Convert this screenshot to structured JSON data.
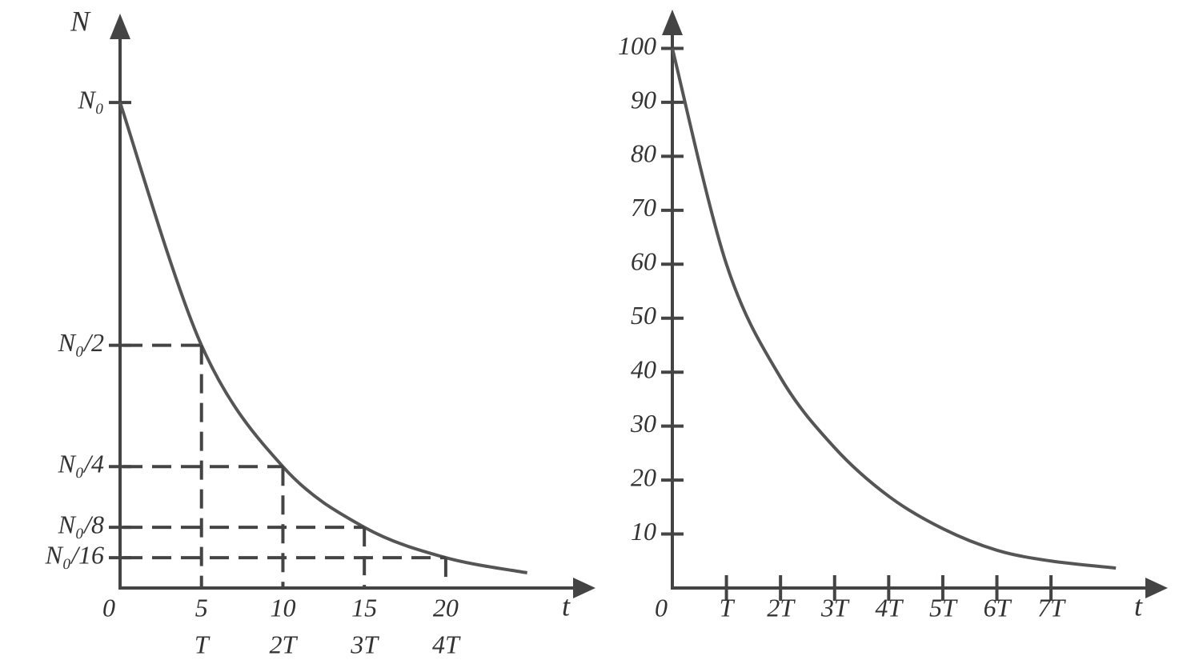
{
  "chart_data": [
    {
      "type": "line",
      "ylabel": "N",
      "xlabel": "t",
      "x": [
        0,
        5,
        10,
        15,
        20,
        25
      ],
      "series": [
        {
          "color": "#555555",
          "values": [
            1,
            0.5,
            0.25,
            0.125,
            0.0625,
            0.03125
          ]
        }
      ],
      "xlim": [
        0,
        29
      ],
      "ylim": [
        0,
        1.17
      ],
      "yticks": [
        {
          "value": 1,
          "label": "N₀"
        },
        {
          "value": 0.5,
          "label": "N₀/2"
        },
        {
          "value": 0.25,
          "label": "N₀/4"
        },
        {
          "value": 0.125,
          "label": "N₀/8"
        },
        {
          "value": 0.0625,
          "label": "N₀/16"
        }
      ],
      "xticks": [
        0,
        5,
        10,
        15,
        20
      ],
      "x2ticks": [
        {
          "value": 5,
          "label": "T"
        },
        {
          "value": 10,
          "label": "2T"
        },
        {
          "value": 15,
          "label": "3T"
        },
        {
          "value": 20,
          "label": "4T"
        }
      ],
      "guides": true,
      "xtick_marks": false
    },
    {
      "type": "line",
      "xlabel": "t",
      "x": [
        0,
        1,
        2,
        3,
        4,
        5,
        6,
        7,
        8.2
      ],
      "series": [
        {
          "color": "#555555",
          "values": [
            100,
            60,
            39,
            26,
            17,
            11,
            7,
            5,
            3.7
          ]
        }
      ],
      "xlim": [
        0,
        9.1
      ],
      "ylim": [
        0,
        106
      ],
      "yticks": [
        10,
        20,
        30,
        40,
        50,
        60,
        70,
        80,
        90,
        100
      ],
      "xticks": [
        0,
        {
          "value": 1,
          "label": "T"
        },
        {
          "value": 2,
          "label": "2T"
        },
        {
          "value": 3,
          "label": "3T"
        },
        {
          "value": 4,
          "label": "4T"
        },
        {
          "value": 5,
          "label": "5T"
        },
        {
          "value": 6,
          "label": "6T"
        },
        {
          "value": 7,
          "label": "7T"
        }
      ],
      "guides": false,
      "xtick_marks": true
    }
  ]
}
